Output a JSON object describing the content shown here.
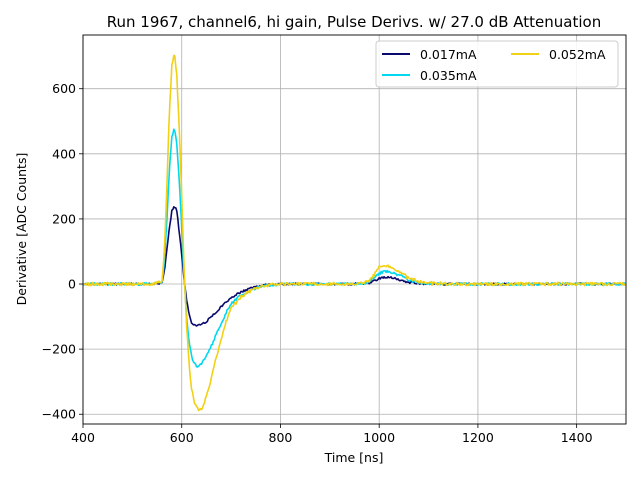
{
  "chart_data": {
    "type": "line",
    "title": "Run 1967, channel6, hi gain, Pulse Derivs. w/ 27.0 dB Attenuation",
    "xlabel": "Time [ns]",
    "ylabel": "Derivative [ADC Counts]",
    "xlim": [
      400,
      1500
    ],
    "ylim": [
      -430,
      765
    ],
    "xticks": [
      400,
      600,
      800,
      1000,
      1200,
      1400
    ],
    "yticks": [
      -400,
      -200,
      0,
      200,
      400,
      600
    ],
    "xtick_labels": [
      "400",
      "600",
      "800",
      "1000",
      "1200",
      "1400"
    ],
    "ytick_labels": [
      "−400",
      "−200",
      "0",
      "200",
      "400",
      "600"
    ],
    "grid": true,
    "legend_position": "top-right",
    "legend_columns": 2,
    "series": [
      {
        "name": "0.017mA",
        "color": "#0a0a6e",
        "x": [
          400,
          450,
          500,
          540,
          560,
          565,
          570,
          575,
          580,
          585,
          590,
          595,
          600,
          605,
          610,
          615,
          620,
          625,
          630,
          635,
          640,
          650,
          660,
          670,
          680,
          690,
          700,
          720,
          740,
          760,
          780,
          800,
          850,
          900,
          950,
          980,
          990,
          1000,
          1010,
          1020,
          1030,
          1040,
          1050,
          1060,
          1080,
          1100,
          1150,
          1200,
          1300,
          1400,
          1500
        ],
        "y": [
          0,
          0,
          0,
          0,
          3,
          40,
          110,
          170,
          225,
          240,
          225,
          160,
          90,
          10,
          -50,
          -95,
          -118,
          -126,
          -128,
          -127,
          -125,
          -115,
          -100,
          -85,
          -70,
          -55,
          -42,
          -25,
          -12,
          -5,
          -1,
          0,
          0,
          0,
          0,
          3,
          10,
          17,
          20,
          20,
          18,
          14,
          9,
          5,
          2,
          0,
          0,
          0,
          0,
          0,
          0
        ]
      },
      {
        "name": "0.035mA",
        "color": "#00d8f0",
        "x": [
          400,
          450,
          500,
          540,
          560,
          565,
          570,
          575,
          580,
          585,
          590,
          595,
          600,
          605,
          610,
          615,
          620,
          625,
          630,
          635,
          640,
          645,
          650,
          660,
          670,
          680,
          690,
          700,
          720,
          740,
          760,
          780,
          800,
          850,
          900,
          950,
          980,
          990,
          1000,
          1010,
          1020,
          1030,
          1040,
          1050,
          1060,
          1080,
          1100,
          1150,
          1200,
          1300,
          1400,
          1500
        ],
        "y": [
          0,
          0,
          0,
          0,
          5,
          70,
          200,
          350,
          450,
          478,
          430,
          320,
          170,
          20,
          -100,
          -180,
          -222,
          -243,
          -252,
          -250,
          -245,
          -235,
          -220,
          -190,
          -155,
          -120,
          -88,
          -60,
          -35,
          -18,
          -8,
          -3,
          0,
          0,
          0,
          0,
          5,
          20,
          33,
          38,
          37,
          33,
          27,
          20,
          12,
          5,
          2,
          0,
          0,
          0,
          0,
          0
        ]
      },
      {
        "name": "0.052mA",
        "color": "#f2d014",
        "x": [
          400,
          450,
          500,
          540,
          560,
          565,
          570,
          575,
          580,
          585,
          590,
          595,
          600,
          605,
          610,
          615,
          620,
          625,
          630,
          635,
          640,
          645,
          650,
          660,
          670,
          680,
          690,
          700,
          720,
          740,
          760,
          780,
          800,
          850,
          900,
          950,
          980,
          990,
          1000,
          1010,
          1020,
          1030,
          1040,
          1050,
          1060,
          1080,
          1100,
          1150,
          1200,
          1300,
          1400,
          1500
        ],
        "y": [
          0,
          0,
          0,
          0,
          8,
          100,
          300,
          530,
          670,
          710,
          640,
          480,
          270,
          40,
          -130,
          -250,
          -320,
          -360,
          -380,
          -388,
          -385,
          -370,
          -345,
          -290,
          -225,
          -165,
          -115,
          -75,
          -40,
          -20,
          -8,
          -3,
          0,
          0,
          0,
          0,
          8,
          30,
          52,
          57,
          55,
          48,
          38,
          28,
          18,
          8,
          3,
          0,
          0,
          0,
          0,
          0
        ]
      }
    ]
  }
}
